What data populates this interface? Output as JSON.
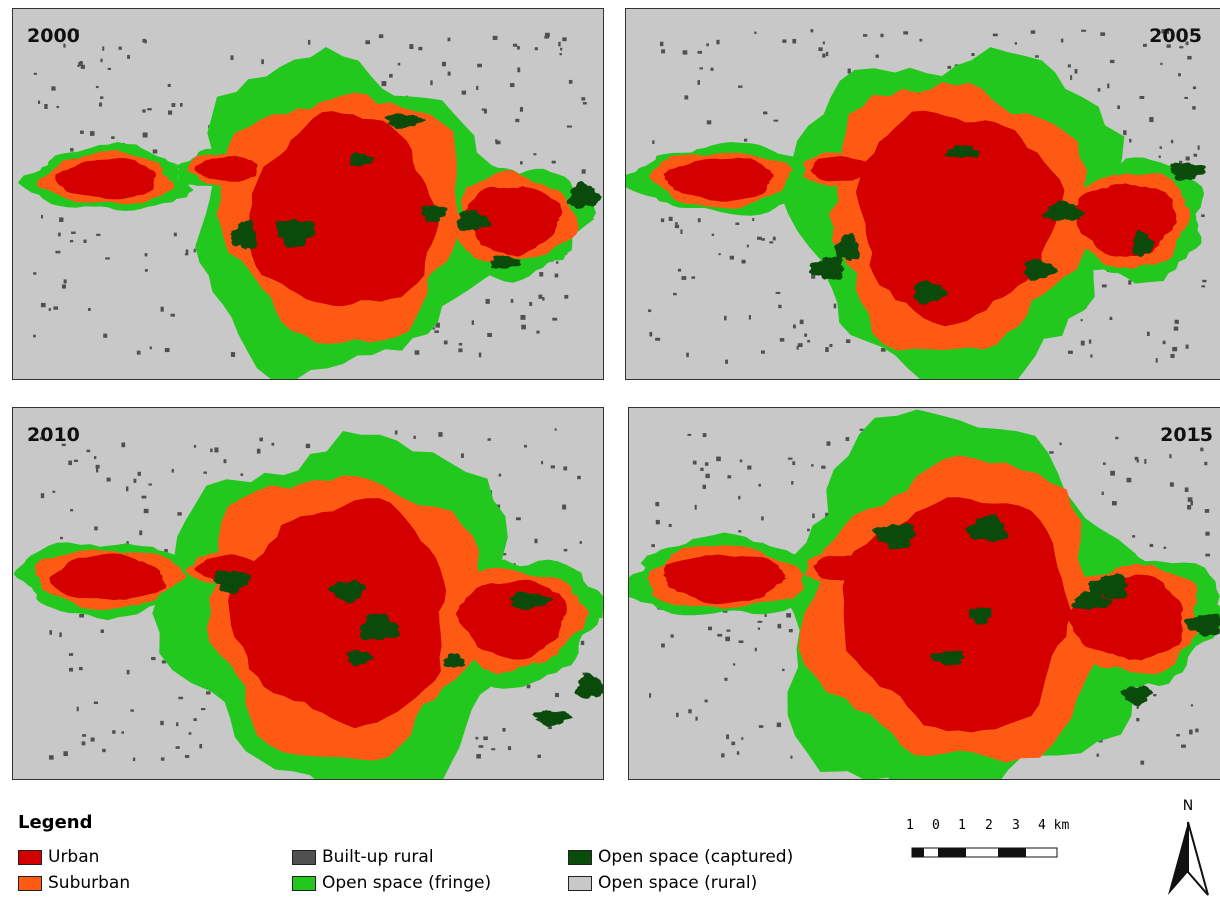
{
  "panels": [
    {
      "year": "2000"
    },
    {
      "year": "2005"
    },
    {
      "year": "2010"
    },
    {
      "year": "2015"
    }
  ],
  "legend": {
    "title": "Legend",
    "items": [
      {
        "label": "Urban",
        "color": "#d40000"
      },
      {
        "label": "Suburban",
        "color": "#ff5a14"
      },
      {
        "label": "Built-up rural",
        "color": "#505050"
      },
      {
        "label": "Open space (fringe)",
        "color": "#22c81e"
      },
      {
        "label": "Open space (captured)",
        "color": "#0a4a0a"
      },
      {
        "label": "Open space (rural)",
        "color": "#c8c8c8"
      }
    ]
  },
  "scale_bar": {
    "labels": [
      "1",
      "0",
      "1",
      "2",
      "3",
      "4 km"
    ]
  },
  "north_arrow": {
    "label": "N"
  }
}
